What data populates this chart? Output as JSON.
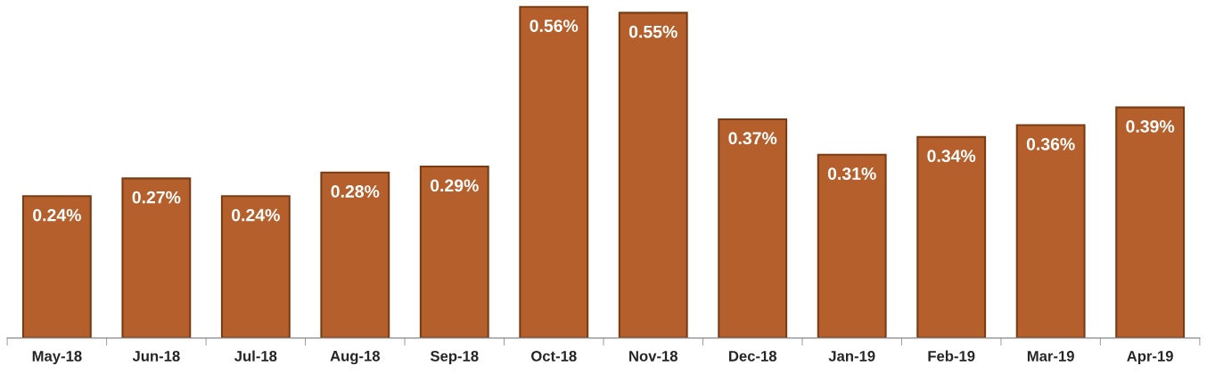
{
  "chart_data": {
    "type": "bar",
    "categories": [
      "May-18",
      "Jun-18",
      "Jul-18",
      "Aug-18",
      "Sep-18",
      "Oct-18",
      "Nov-18",
      "Dec-18",
      "Jan-19",
      "Feb-19",
      "Mar-19",
      "Apr-19"
    ],
    "values": [
      0.24,
      0.27,
      0.24,
      0.28,
      0.29,
      0.56,
      0.55,
      0.37,
      0.31,
      0.34,
      0.36,
      0.39
    ],
    "value_labels": [
      "0.24%",
      "0.27%",
      "0.24%",
      "0.28%",
      "0.29%",
      "0.56%",
      "0.55%",
      "0.37%",
      "0.31%",
      "0.34%",
      "0.36%",
      "0.39%"
    ],
    "color": "#b5602c",
    "tick_labels": "x",
    "grid": false,
    "legend": false
  }
}
